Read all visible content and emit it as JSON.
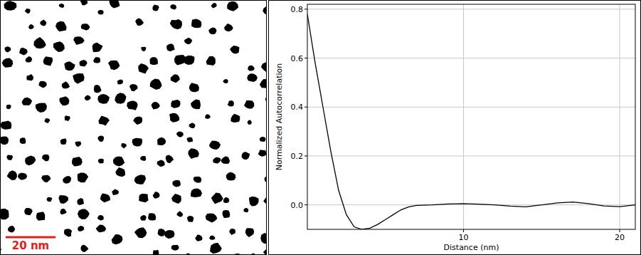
{
  "image": {
    "scale_bar": {
      "label": "20 nm",
      "color": "#e0201b"
    }
  },
  "chart_data": {
    "type": "line",
    "x_label": "Distance (nm)",
    "y_label": "Normalized Autocorrelation",
    "x": [
      0,
      0.5,
      1,
      1.5,
      2,
      2.5,
      3,
      3.5,
      4,
      4.5,
      5,
      5.5,
      6,
      6.5,
      7,
      8,
      9,
      10,
      11,
      12,
      13,
      14,
      15,
      16,
      17,
      18,
      19,
      20,
      21
    ],
    "values": [
      0.78,
      0.58,
      0.4,
      0.22,
      0.06,
      -0.04,
      -0.09,
      -0.1,
      -0.095,
      -0.08,
      -0.06,
      -0.04,
      -0.02,
      -0.008,
      -0.002,
      0.0,
      0.004,
      0.005,
      0.003,
      0.0,
      -0.005,
      -0.008,
      0.0,
      0.008,
      0.012,
      0.005,
      -0.004,
      -0.007,
      0.0
    ],
    "color": "#000000",
    "xlim": [
      0,
      21
    ],
    "ylim": [
      -0.1,
      0.82
    ],
    "xticks": [
      10,
      20
    ],
    "yticks": [
      {
        "value": 0,
        "label": "0.0"
      },
      0.2,
      0.4,
      0.6,
      0.8
    ],
    "grid": true
  }
}
